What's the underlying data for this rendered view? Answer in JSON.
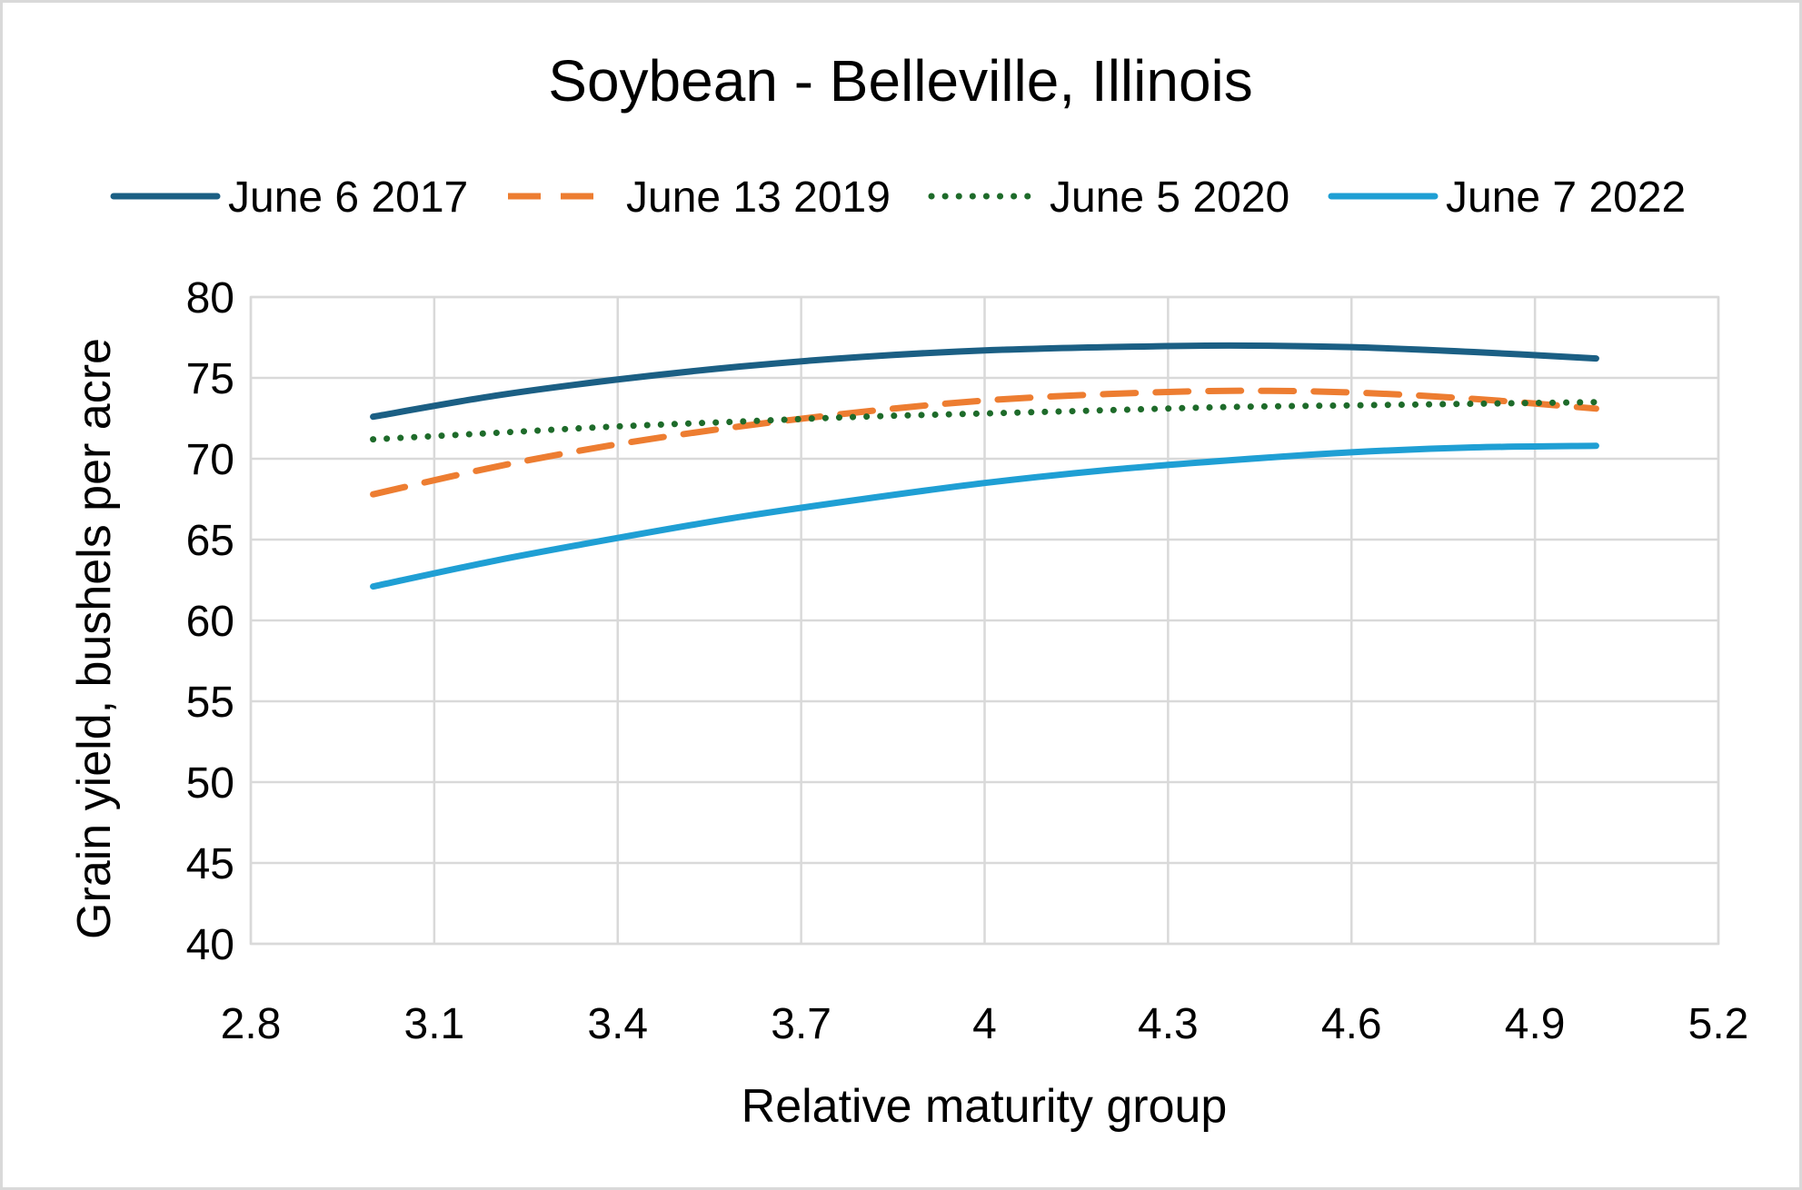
{
  "chart_data": {
    "type": "line",
    "title": "Soybean - Belleville, Illinois",
    "xlabel": "Relative maturity group",
    "ylabel": "Grain yield, bushels per acre",
    "xlim": [
      2.8,
      5.2
    ],
    "ylim": [
      40,
      80
    ],
    "xticks": [
      "2.8",
      "3.1",
      "3.4",
      "3.7",
      "4",
      "4.3",
      "4.6",
      "4.9",
      "5.2"
    ],
    "yticks": [
      "40",
      "45",
      "50",
      "55",
      "60",
      "65",
      "70",
      "75",
      "80"
    ],
    "grid": true,
    "legend_position": "top",
    "series": [
      {
        "name": "June 6 2017",
        "color": "#1b5f84",
        "style": "solid",
        "x": [
          3.0,
          3.2,
          3.4,
          3.6,
          3.8,
          4.0,
          4.2,
          4.4,
          4.6,
          4.8,
          5.0
        ],
        "y": [
          72.6,
          73.9,
          74.9,
          75.7,
          76.3,
          76.7,
          76.9,
          77.0,
          76.9,
          76.6,
          76.2
        ]
      },
      {
        "name": "June 13 2019",
        "color": "#ed7d31",
        "style": "dashed",
        "x": [
          3.0,
          3.2,
          3.4,
          3.6,
          3.8,
          4.0,
          4.2,
          4.4,
          4.6,
          4.8,
          5.0
        ],
        "y": [
          67.8,
          69.5,
          70.9,
          72.0,
          72.9,
          73.6,
          74.0,
          74.2,
          74.1,
          73.7,
          73.1
        ]
      },
      {
        "name": "June 5 2020",
        "color": "#1e6b2a",
        "style": "dotted",
        "x": [
          3.0,
          3.2,
          3.4,
          3.6,
          3.8,
          4.0,
          4.2,
          4.4,
          4.6,
          4.8,
          5.0
        ],
        "y": [
          71.2,
          71.6,
          72.0,
          72.3,
          72.6,
          72.8,
          73.0,
          73.2,
          73.3,
          73.4,
          73.5
        ]
      },
      {
        "name": "June 7 2022",
        "color": "#1f9fd4",
        "style": "solid",
        "x": [
          3.0,
          3.2,
          3.4,
          3.6,
          3.8,
          4.0,
          4.2,
          4.4,
          4.6,
          4.8,
          5.0
        ],
        "y": [
          62.1,
          63.7,
          65.1,
          66.4,
          67.5,
          68.5,
          69.3,
          69.9,
          70.4,
          70.7,
          70.8
        ]
      }
    ]
  }
}
